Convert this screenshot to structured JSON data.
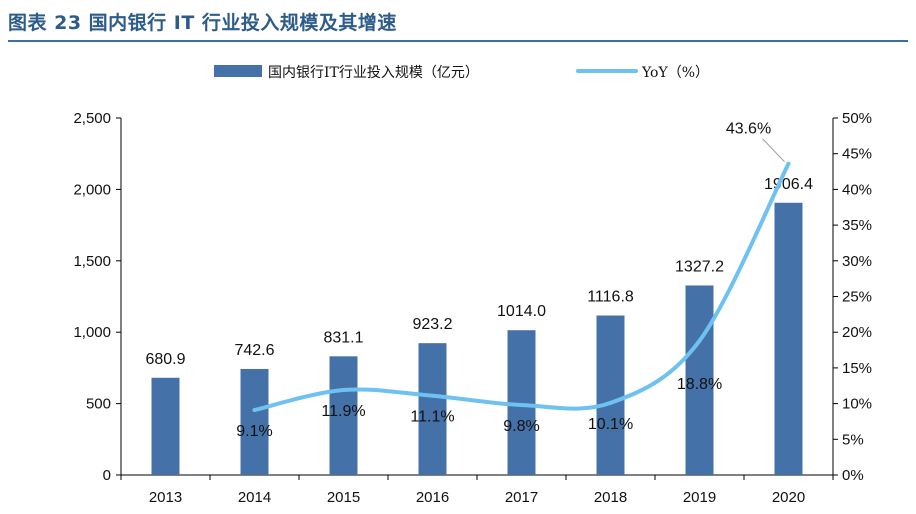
{
  "header": {
    "title": "图表 23 国内银行 IT 行业投入规模及其增速"
  },
  "colors": {
    "bar": "#4472A8",
    "line": "#6EC1F0",
    "title": "#2E5C8A",
    "axis": "#000000"
  },
  "chart_data": {
    "type": "bar",
    "title": "图表 23 国内银行 IT 行业投入规模及其增速",
    "categories": [
      "2013",
      "2014",
      "2015",
      "2016",
      "2017",
      "2018",
      "2019",
      "2020"
    ],
    "series": [
      {
        "name": "国内银行IT行业投入规模（亿元）",
        "type": "bar",
        "axis": "left",
        "values": [
          680.9,
          742.6,
          831.1,
          923.2,
          1014.0,
          1116.8,
          1327.2,
          1906.4
        ],
        "labels": [
          "680.9",
          "742.6",
          "831.1",
          "923.2",
          "1014.0",
          "1116.8",
          "1327.2",
          "1906.4"
        ]
      },
      {
        "name": "YoY（%）",
        "type": "line",
        "axis": "right",
        "values": [
          null,
          9.1,
          11.9,
          11.1,
          9.8,
          10.1,
          18.8,
          43.6
        ],
        "labels": [
          "",
          "9.1%",
          "11.9%",
          "11.1%",
          "9.8%",
          "10.1%",
          "18.8%",
          "43.6%"
        ]
      }
    ],
    "y_left": {
      "min": 0,
      "max": 2500,
      "ticks": [
        0,
        500,
        1000,
        1500,
        2000,
        2500
      ],
      "tick_labels": [
        "0",
        "500",
        "1,000",
        "1,500",
        "2,000",
        "2,500"
      ]
    },
    "y_right": {
      "min": 0,
      "max": 50,
      "ticks": [
        0,
        5,
        10,
        15,
        20,
        25,
        30,
        35,
        40,
        45,
        50
      ],
      "tick_labels": [
        "0%",
        "5%",
        "10%",
        "15%",
        "20%",
        "25%",
        "30%",
        "35%",
        "40%",
        "45%",
        "50%"
      ]
    },
    "legend": "top-center",
    "grid": false
  }
}
